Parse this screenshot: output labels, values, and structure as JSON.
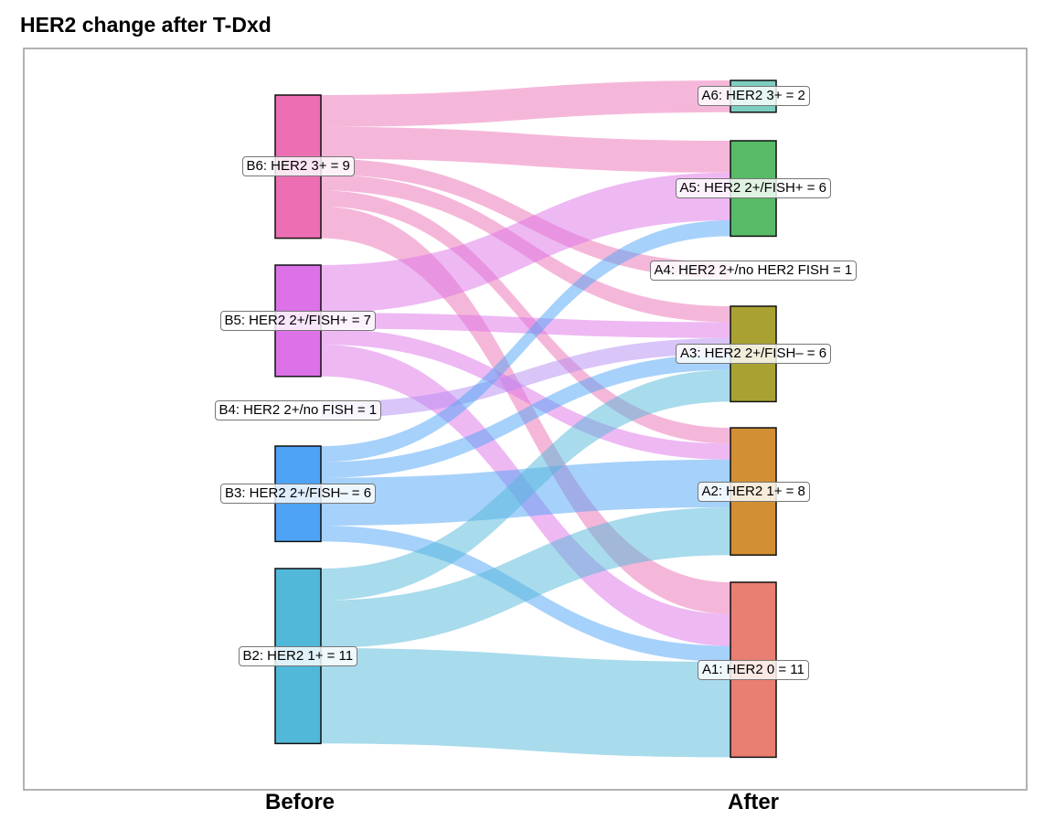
{
  "title": "HER2 change after T-Dxd",
  "x_labels": {
    "left": "Before",
    "right": "After"
  },
  "chart_data": {
    "type": "sankey",
    "title": "HER2 change after T-Dxd",
    "nodes_before": [
      {
        "id": "B6",
        "label": "B6: HER2 3+ = 9",
        "value": 9,
        "color": "#ec6fb4"
      },
      {
        "id": "B5",
        "label": "B5: HER2 2+/FISH+ = 7",
        "value": 7,
        "color": "#dd72e8"
      },
      {
        "id": "B4",
        "label": "B4: HER2 2+/no FISH = 1",
        "value": 1,
        "color": "#b48cf2"
      },
      {
        "id": "B3",
        "label": "B3: HER2 2+/FISH– = 6",
        "value": 6,
        "color": "#4ea3f6"
      },
      {
        "id": "B2",
        "label": "B2: HER2 1+ = 11",
        "value": 11,
        "color": "#52b8da"
      }
    ],
    "nodes_after": [
      {
        "id": "A6",
        "label": "A6: HER2 3+ = 2",
        "value": 2,
        "color": "#7ccfc0"
      },
      {
        "id": "A5",
        "label": "A5: HER2 2+/FISH+ = 6",
        "value": 6,
        "color": "#57bb67"
      },
      {
        "id": "A4",
        "label": "A4: HER2 2+/no HER2 FISH = 1",
        "value": 1,
        "color": "#a9d08a"
      },
      {
        "id": "A3",
        "label": "A3: HER2 2+/FISH– = 6",
        "value": 6,
        "color": "#a9a232"
      },
      {
        "id": "A2",
        "label": "A2: HER2 1+ = 8",
        "value": 8,
        "color": "#d28f33"
      },
      {
        "id": "A1",
        "label": "A1: HER2 0 = 11",
        "value": 11,
        "color": "#e97e72"
      }
    ],
    "links": [
      {
        "source": "B6",
        "target": "A6",
        "value": 2
      },
      {
        "source": "B6",
        "target": "A5",
        "value": 2
      },
      {
        "source": "B6",
        "target": "A4",
        "value": 1
      },
      {
        "source": "B6",
        "target": "A3",
        "value": 1
      },
      {
        "source": "B6",
        "target": "A2",
        "value": 1
      },
      {
        "source": "B6",
        "target": "A1",
        "value": 2
      },
      {
        "source": "B5",
        "target": "A5",
        "value": 3
      },
      {
        "source": "B5",
        "target": "A3",
        "value": 1
      },
      {
        "source": "B5",
        "target": "A2",
        "value": 1
      },
      {
        "source": "B5",
        "target": "A1",
        "value": 2
      },
      {
        "source": "B4",
        "target": "A3",
        "value": 1
      },
      {
        "source": "B3",
        "target": "A5",
        "value": 1
      },
      {
        "source": "B3",
        "target": "A3",
        "value": 1
      },
      {
        "source": "B3",
        "target": "A2",
        "value": 3
      },
      {
        "source": "B3",
        "target": "A1",
        "value": 1
      },
      {
        "source": "B2",
        "target": "A3",
        "value": 2
      },
      {
        "source": "B2",
        "target": "A2",
        "value": 3
      },
      {
        "source": "B2",
        "target": "A1",
        "value": 6
      }
    ]
  }
}
